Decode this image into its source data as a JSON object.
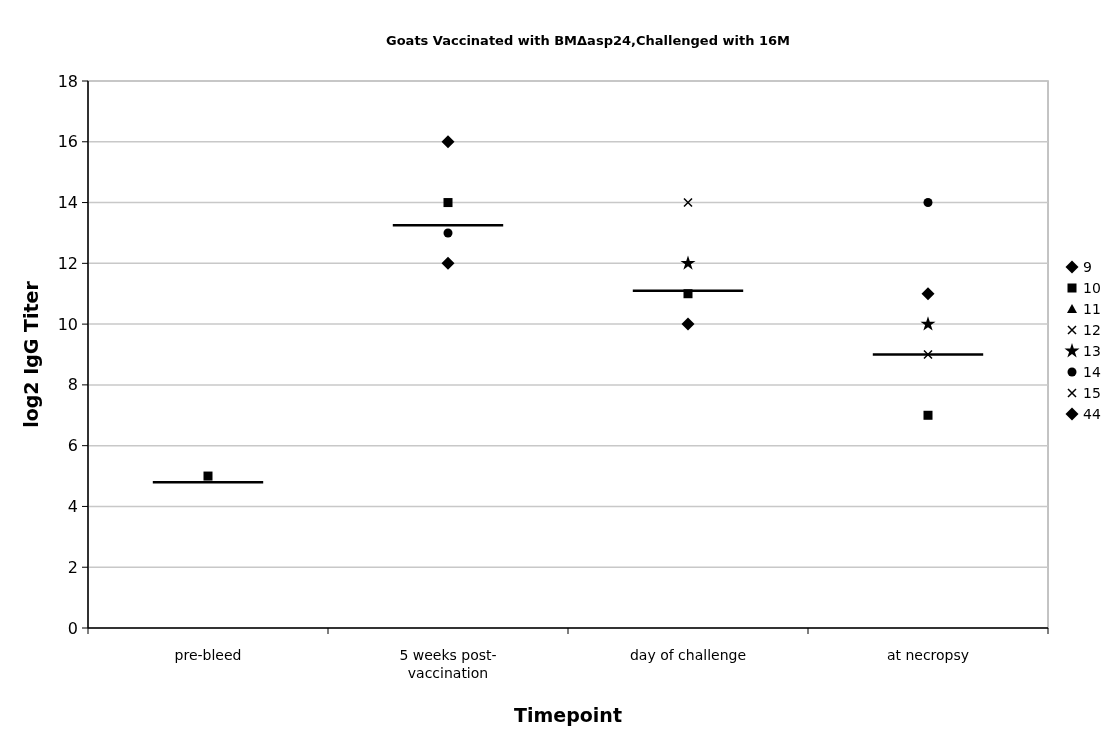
{
  "chart_data": {
    "type": "scatter",
    "title": "Goats Vaccinated with BMΔasp24,Challenged with 16M",
    "xlabel": "Timepoint",
    "ylabel": "log2 IgG Titer",
    "categories": [
      "pre-bleed",
      "5 weeks post-vaccination",
      "day of challenge",
      "at necropsy"
    ],
    "ylim": [
      0,
      18
    ],
    "yticks": [
      0,
      2,
      4,
      6,
      8,
      10,
      12,
      14,
      16,
      18
    ],
    "grid": "y",
    "legend": "right",
    "series": [
      {
        "name": "9",
        "color": "#000000",
        "marker": "diamond",
        "values": [
          null,
          16,
          10,
          11
        ]
      },
      {
        "name": "10",
        "color": "#000000",
        "marker": "square",
        "values": [
          5,
          14,
          11,
          7
        ]
      },
      {
        "name": "11",
        "color": "#000000",
        "marker": "triangle",
        "values": [
          null,
          null,
          null,
          null
        ]
      },
      {
        "name": "12",
        "color": "#000000",
        "marker": "cross",
        "values": [
          null,
          null,
          14,
          null
        ]
      },
      {
        "name": "13",
        "color": "#000000",
        "marker": "star",
        "values": [
          null,
          null,
          12,
          10
        ]
      },
      {
        "name": "14",
        "color": "#000000",
        "marker": "circle",
        "values": [
          null,
          13,
          null,
          14
        ]
      },
      {
        "name": "15",
        "color": "#000000",
        "marker": "cross",
        "values": [
          null,
          null,
          null,
          9
        ]
      },
      {
        "name": "44",
        "color": "#000000",
        "marker": "diamond",
        "values": [
          null,
          12,
          null,
          null
        ]
      }
    ],
    "ref_lines": [
      {
        "axis": "y",
        "value": 4.8,
        "color": "#000000"
      },
      {
        "axis": "y",
        "value": 13.25,
        "color": "#000000"
      },
      {
        "axis": "y",
        "value": 11.1,
        "color": "#000000"
      },
      {
        "axis": "y",
        "value": 9,
        "color": "#000000"
      }
    ]
  }
}
